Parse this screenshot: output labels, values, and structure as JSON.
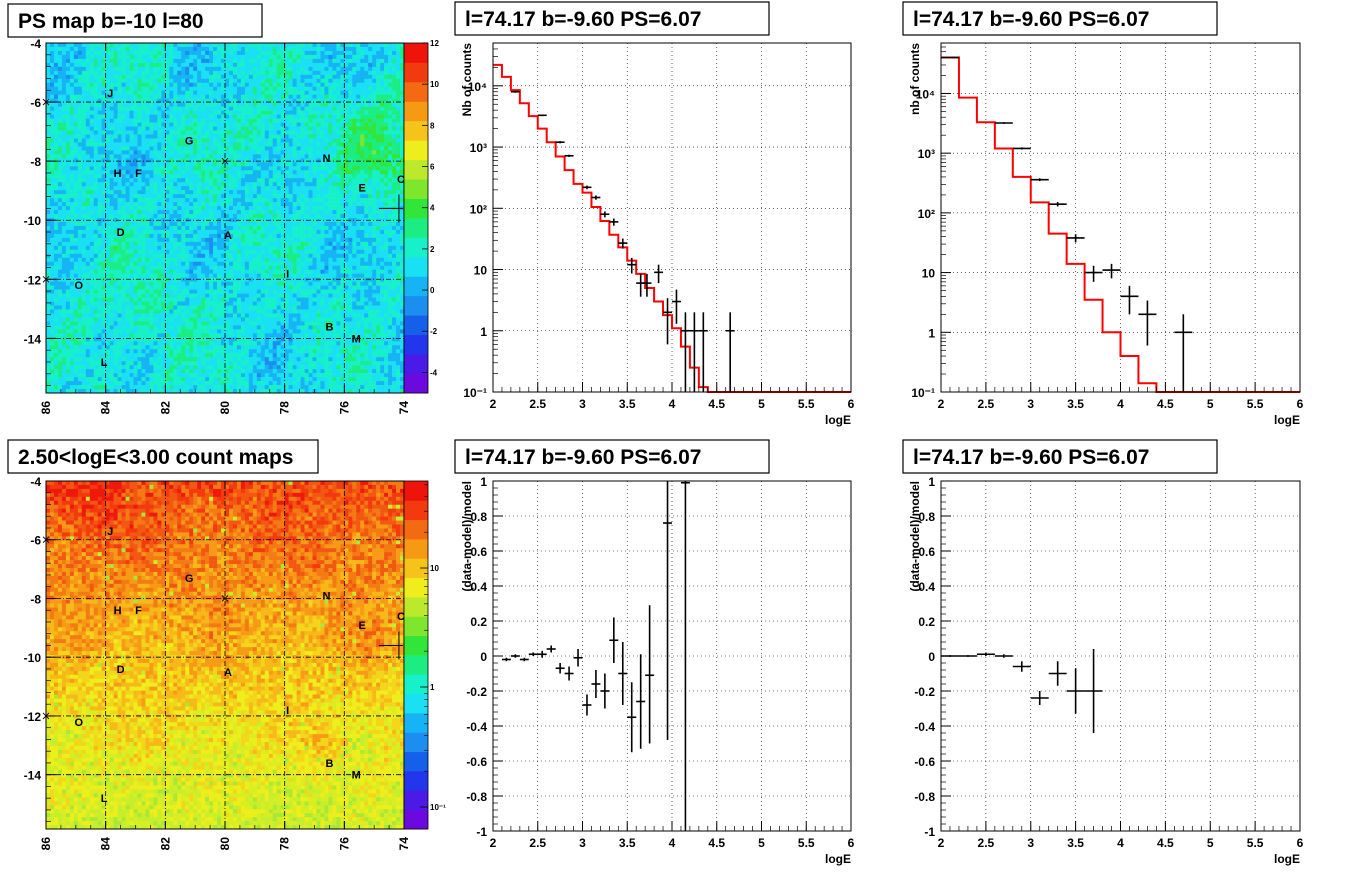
{
  "chart_data": [
    {
      "id": "ps_map",
      "type": "heatmap",
      "title": "PS map b=-10 l=80",
      "xlabel": "",
      "ylabel": "",
      "xlim": [
        86,
        74
      ],
      "ylim": [
        -15.85,
        -4.0
      ],
      "xticks": [
        "86",
        "84",
        "82",
        "80",
        "78",
        "76",
        "74"
      ],
      "yticks": [
        "-4",
        "-6",
        "-8",
        "-10",
        "-12",
        "-14"
      ],
      "colorbar": {
        "scale": "linear",
        "range": [
          -5,
          12
        ],
        "ticks": [
          "12",
          "10",
          "8",
          "6",
          "4",
          "2",
          "0",
          "-2",
          "-4"
        ]
      },
      "colormap": [
        "#6a0adf",
        "#4b1ae6",
        "#2236ee",
        "#1460ea",
        "#1c8ef0",
        "#16b4f4",
        "#1ae0f4",
        "#17f1c9",
        "#1bed83",
        "#32e53b",
        "#7ee62c",
        "#bde92c",
        "#f0ed1d",
        "#f6c31b",
        "#f69a14",
        "#f36a12",
        "#f23a0e",
        "#ee140c"
      ],
      "sources": [
        {
          "label": "J",
          "l": 83.85,
          "b": -5.7
        },
        {
          "label": "G",
          "l": 81.2,
          "b": -7.3
        },
        {
          "label": "N",
          "l": 76.6,
          "b": -7.9
        },
        {
          "label": "H",
          "l": 83.6,
          "b": -8.4
        },
        {
          "label": "F",
          "l": 82.9,
          "b": -8.4
        },
        {
          "label": "C",
          "l": 74.1,
          "b": -8.6
        },
        {
          "label": "E",
          "l": 75.4,
          "b": -8.9
        },
        {
          "label": "D",
          "l": 83.5,
          "b": -10.4
        },
        {
          "label": "A",
          "l": 79.9,
          "b": -10.5
        },
        {
          "label": "I",
          "l": 77.9,
          "b": -11.8
        },
        {
          "label": "O",
          "l": 84.9,
          "b": -12.2
        },
        {
          "label": "B",
          "l": 76.5,
          "b": -13.6
        },
        {
          "label": "M",
          "l": 75.6,
          "b": -14.0
        },
        {
          "label": "L",
          "l": 84.05,
          "b": -14.8
        }
      ]
    },
    {
      "id": "count_map",
      "type": "heatmap",
      "title": "2.50<logE<3.00 count maps",
      "xlabel": "",
      "ylabel": "",
      "xlim": [
        86,
        74
      ],
      "ylim": [
        -15.85,
        -4.0
      ],
      "xticks": [
        "86",
        "84",
        "82",
        "80",
        "78",
        "76",
        "74"
      ],
      "yticks": [
        "-4",
        "-6",
        "-8",
        "-10",
        "-12",
        "-14"
      ],
      "colorbar": {
        "scale": "log",
        "ticks": [
          "10",
          "1",
          "10⁻¹"
        ]
      },
      "sources": [
        {
          "label": "J",
          "l": 83.85,
          "b": -5.7
        },
        {
          "label": "G",
          "l": 81.2,
          "b": -7.3
        },
        {
          "label": "N",
          "l": 76.6,
          "b": -7.9
        },
        {
          "label": "H",
          "l": 83.6,
          "b": -8.4
        },
        {
          "label": "F",
          "l": 82.9,
          "b": -8.4
        },
        {
          "label": "C",
          "l": 74.1,
          "b": -8.6
        },
        {
          "label": "E",
          "l": 75.4,
          "b": -8.9
        },
        {
          "label": "D",
          "l": 83.5,
          "b": -10.4
        },
        {
          "label": "A",
          "l": 79.9,
          "b": -10.5
        },
        {
          "label": "I",
          "l": 77.9,
          "b": -11.8
        },
        {
          "label": "O",
          "l": 84.9,
          "b": -12.2
        },
        {
          "label": "B",
          "l": 76.5,
          "b": -13.6
        },
        {
          "label": "M",
          "l": 75.6,
          "b": -14.0
        },
        {
          "label": "L",
          "l": 84.05,
          "b": -14.8
        }
      ]
    },
    {
      "id": "spec1",
      "type": "line",
      "title": "l=74.17 b=-9.60 PS=6.07",
      "xlabel": "logE",
      "ylabel": "Nb of counts",
      "xlim": [
        2,
        6
      ],
      "ylim": [
        0.1,
        50000
      ],
      "yscale": "log",
      "grid": true,
      "xticks": [
        "2",
        "2.5",
        "3",
        "3.5",
        "4",
        "4.5",
        "5",
        "5.5",
        "6"
      ],
      "yticks": [
        {
          "v": 0.1,
          "label": "10⁻¹"
        },
        {
          "v": 1,
          "label": "1"
        },
        {
          "v": 10,
          "label": "10"
        },
        {
          "v": 100,
          "label": "10²"
        },
        {
          "v": 1000,
          "label": "10³"
        },
        {
          "v": 10000,
          "label": "10⁴"
        }
      ],
      "model": {
        "color": "#ff0000",
        "edges": [
          2.0,
          2.1,
          2.2,
          2.3,
          2.4,
          2.5,
          2.6,
          2.7,
          2.8,
          2.9,
          3.0,
          3.1,
          3.2,
          3.3,
          3.4,
          3.5,
          3.6,
          3.7,
          3.8,
          3.9,
          4.0,
          4.1,
          4.2,
          4.3,
          4.4,
          6.0
        ],
        "values": [
          22000,
          14000,
          8500,
          5200,
          3200,
          2000,
          1200,
          700,
          420,
          250,
          180,
          105,
          62,
          37,
          23,
          14,
          8.5,
          5,
          3,
          1.8,
          1.1,
          0.55,
          0.25,
          0.12,
          0.1
        ]
      },
      "points": [
        {
          "x": 2.25,
          "y": 8000,
          "ylo": 7700,
          "yhi": 8300,
          "xerr": 0.05
        },
        {
          "x": 2.55,
          "y": 3300,
          "ylo": 3200,
          "yhi": 3400,
          "xerr": 0.05
        },
        {
          "x": 2.75,
          "y": 1200,
          "ylo": 1150,
          "yhi": 1250,
          "xerr": 0.05
        },
        {
          "x": 2.85,
          "y": 720,
          "ylo": 690,
          "yhi": 750,
          "xerr": 0.05
        },
        {
          "x": 3.05,
          "y": 220,
          "ylo": 205,
          "yhi": 235,
          "xerr": 0.05
        },
        {
          "x": 3.15,
          "y": 150,
          "ylo": 138,
          "yhi": 162,
          "xerr": 0.05
        },
        {
          "x": 3.25,
          "y": 80,
          "ylo": 71,
          "yhi": 89,
          "xerr": 0.05
        },
        {
          "x": 3.35,
          "y": 60,
          "ylo": 52,
          "yhi": 68,
          "xerr": 0.05
        },
        {
          "x": 3.45,
          "y": 27,
          "ylo": 22,
          "yhi": 32,
          "xerr": 0.05
        },
        {
          "x": 3.55,
          "y": 12,
          "ylo": 8.6,
          "yhi": 15.5,
          "xerr": 0.05
        },
        {
          "x": 3.65,
          "y": 6,
          "ylo": 3.6,
          "yhi": 8.5,
          "xerr": 0.05
        },
        {
          "x": 3.72,
          "y": 6,
          "ylo": 3.6,
          "yhi": 8.5,
          "xerr": 0.05
        },
        {
          "x": 3.85,
          "y": 9,
          "ylo": 6,
          "yhi": 12,
          "xerr": 0.05
        },
        {
          "x": 3.95,
          "y": 2,
          "ylo": 0.6,
          "yhi": 3.4,
          "xerr": 0.05
        },
        {
          "x": 4.05,
          "y": 3,
          "ylo": 1.3,
          "yhi": 4.7,
          "xerr": 0.05
        },
        {
          "x": 4.15,
          "y": 1,
          "ylo": 0.1,
          "yhi": 2,
          "xerr": 0.05
        },
        {
          "x": 4.25,
          "y": 1,
          "ylo": 0.1,
          "yhi": 2,
          "xerr": 0.05
        },
        {
          "x": 4.35,
          "y": 1,
          "ylo": 0.1,
          "yhi": 2,
          "xerr": 0.05
        },
        {
          "x": 4.65,
          "y": 1,
          "ylo": 0.1,
          "yhi": 2,
          "xerr": 0.05
        }
      ]
    },
    {
      "id": "spec2",
      "type": "line",
      "title": "l=74.17 b=-9.60 PS=6.07",
      "xlabel": "logE",
      "ylabel": "nb of counts",
      "xlim": [
        2,
        6
      ],
      "ylim": [
        0.1,
        70000
      ],
      "yscale": "log",
      "grid": true,
      "xticks": [
        "2",
        "2.5",
        "3",
        "3.5",
        "4",
        "4.5",
        "5",
        "5.5",
        "6"
      ],
      "yticks": [
        {
          "v": 0.1,
          "label": "10⁻¹"
        },
        {
          "v": 1,
          "label": "1"
        },
        {
          "v": 10,
          "label": "10"
        },
        {
          "v": 100,
          "label": "10²"
        },
        {
          "v": 1000,
          "label": "10³"
        },
        {
          "v": 10000,
          "label": "10⁴"
        }
      ],
      "model": {
        "color": "#ff0000",
        "edges": [
          2.0,
          2.2,
          2.4,
          2.6,
          2.8,
          3.0,
          3.2,
          3.4,
          3.6,
          3.8,
          4.0,
          4.2,
          4.4,
          6.0
        ],
        "values": [
          40000,
          8500,
          3300,
          1200,
          400,
          150,
          45,
          14,
          3.5,
          1.0,
          0.4,
          0.14,
          0.1
        ]
      },
      "points": [
        {
          "x": 2.1,
          "y": 40000,
          "ylo": 39500,
          "yhi": 40500,
          "xerr": 0.1
        },
        {
          "x": 2.7,
          "y": 3200,
          "ylo": 3100,
          "yhi": 3300,
          "xerr": 0.1
        },
        {
          "x": 2.9,
          "y": 1200,
          "ylo": 1150,
          "yhi": 1250,
          "xerr": 0.1
        },
        {
          "x": 3.1,
          "y": 360,
          "ylo": 340,
          "yhi": 380,
          "xerr": 0.1
        },
        {
          "x": 3.3,
          "y": 140,
          "ylo": 128,
          "yhi": 152,
          "xerr": 0.1
        },
        {
          "x": 3.5,
          "y": 38,
          "ylo": 32,
          "yhi": 44,
          "xerr": 0.1
        },
        {
          "x": 3.7,
          "y": 10,
          "ylo": 7,
          "yhi": 13,
          "xerr": 0.1
        },
        {
          "x": 3.9,
          "y": 11,
          "ylo": 8,
          "yhi": 14,
          "xerr": 0.1
        },
        {
          "x": 4.1,
          "y": 4,
          "ylo": 2,
          "yhi": 6,
          "xerr": 0.1
        },
        {
          "x": 4.3,
          "y": 2,
          "ylo": 0.6,
          "yhi": 3.4,
          "xerr": 0.1
        },
        {
          "x": 4.7,
          "y": 1,
          "ylo": 0.1,
          "yhi": 2,
          "xerr": 0.1
        }
      ]
    },
    {
      "id": "resid1",
      "type": "scatter",
      "title": "l=74.17 b=-9.60 PS=6.07",
      "xlabel": "logE",
      "ylabel": "(data-model)/model",
      "xlim": [
        2,
        6
      ],
      "ylim": [
        -1,
        1
      ],
      "grid": true,
      "xticks": [
        "2",
        "2.5",
        "3",
        "3.5",
        "4",
        "4.5",
        "5",
        "5.5",
        "6"
      ],
      "yticks": [
        "-1",
        "-0.8",
        "-0.6",
        "-0.4",
        "-0.2",
        "0",
        "0.2",
        "0.4",
        "0.6",
        "0.8",
        "1"
      ],
      "points": [
        {
          "x": 2.15,
          "y": -0.02,
          "ylo": -0.03,
          "yhi": -0.01,
          "xerr": 0.05
        },
        {
          "x": 2.25,
          "y": 0.0,
          "ylo": -0.01,
          "yhi": 0.01,
          "xerr": 0.05
        },
        {
          "x": 2.35,
          "y": -0.02,
          "ylo": -0.03,
          "yhi": -0.01,
          "xerr": 0.05
        },
        {
          "x": 2.45,
          "y": 0.01,
          "ylo": 0.0,
          "yhi": 0.02,
          "xerr": 0.05
        },
        {
          "x": 2.55,
          "y": 0.01,
          "ylo": -0.01,
          "yhi": 0.03,
          "xerr": 0.05
        },
        {
          "x": 2.65,
          "y": 0.04,
          "ylo": 0.02,
          "yhi": 0.06,
          "xerr": 0.05
        },
        {
          "x": 2.75,
          "y": -0.07,
          "ylo": -0.1,
          "yhi": -0.04,
          "xerr": 0.05
        },
        {
          "x": 2.85,
          "y": -0.1,
          "ylo": -0.14,
          "yhi": -0.06,
          "xerr": 0.05
        },
        {
          "x": 2.95,
          "y": -0.01,
          "ylo": -0.06,
          "yhi": 0.04,
          "xerr": 0.05
        },
        {
          "x": 3.05,
          "y": -0.28,
          "ylo": -0.34,
          "yhi": -0.22,
          "xerr": 0.05
        },
        {
          "x": 3.15,
          "y": -0.16,
          "ylo": -0.24,
          "yhi": -0.08,
          "xerr": 0.05
        },
        {
          "x": 3.25,
          "y": -0.2,
          "ylo": -0.3,
          "yhi": -0.1,
          "xerr": 0.05
        },
        {
          "x": 3.35,
          "y": 0.09,
          "ylo": -0.04,
          "yhi": 0.22,
          "xerr": 0.05
        },
        {
          "x": 3.45,
          "y": -0.1,
          "ylo": -0.28,
          "yhi": 0.08,
          "xerr": 0.05
        },
        {
          "x": 3.55,
          "y": -0.35,
          "ylo": -0.55,
          "yhi": -0.15,
          "xerr": 0.05
        },
        {
          "x": 3.65,
          "y": -0.26,
          "ylo": -0.53,
          "yhi": 0.01,
          "xerr": 0.05
        },
        {
          "x": 3.75,
          "y": -0.11,
          "ylo": -0.5,
          "yhi": 0.29,
          "xerr": 0.05
        },
        {
          "x": 3.95,
          "y": 0.76,
          "ylo": -0.48,
          "yhi": 1.0,
          "xerr": 0.05
        },
        {
          "x": 4.15,
          "y": 0.99,
          "ylo": -1.0,
          "yhi": 1.0,
          "xerr": 0.05
        }
      ]
    },
    {
      "id": "resid2",
      "type": "scatter",
      "title": "l=74.17 b=-9.60 PS=6.07",
      "xlabel": "logE",
      "ylabel": "(data-model)/model",
      "xlim": [
        2,
        6
      ],
      "ylim": [
        -1,
        1
      ],
      "grid": true,
      "xticks": [
        "2",
        "2.5",
        "3",
        "3.5",
        "4",
        "4.5",
        "5",
        "5.5",
        "6"
      ],
      "yticks": [
        "-1",
        "-0.8",
        "-0.6",
        "-0.4",
        "-0.2",
        "0",
        "0.2",
        "0.4",
        "0.6",
        "0.8",
        "1"
      ],
      "points": [
        {
          "x": 2.1,
          "y": 0.0,
          "ylo": -0.005,
          "yhi": 0.005,
          "xerr": 0.1
        },
        {
          "x": 2.3,
          "y": 0.0,
          "ylo": -0.005,
          "yhi": 0.005,
          "xerr": 0.1
        },
        {
          "x": 2.5,
          "y": 0.01,
          "ylo": 0.0,
          "yhi": 0.02,
          "xerr": 0.1
        },
        {
          "x": 2.7,
          "y": 0.0,
          "ylo": -0.01,
          "yhi": 0.01,
          "xerr": 0.1
        },
        {
          "x": 2.9,
          "y": -0.06,
          "ylo": -0.09,
          "yhi": -0.03,
          "xerr": 0.1
        },
        {
          "x": 3.1,
          "y": -0.24,
          "ylo": -0.28,
          "yhi": -0.2,
          "xerr": 0.1
        },
        {
          "x": 3.3,
          "y": -0.1,
          "ylo": -0.17,
          "yhi": -0.03,
          "xerr": 0.1
        },
        {
          "x": 3.5,
          "y": -0.2,
          "ylo": -0.33,
          "yhi": -0.07,
          "xerr": 0.1
        },
        {
          "x": 3.7,
          "y": -0.2,
          "ylo": -0.44,
          "yhi": 0.04,
          "xerr": 0.1
        }
      ]
    }
  ]
}
